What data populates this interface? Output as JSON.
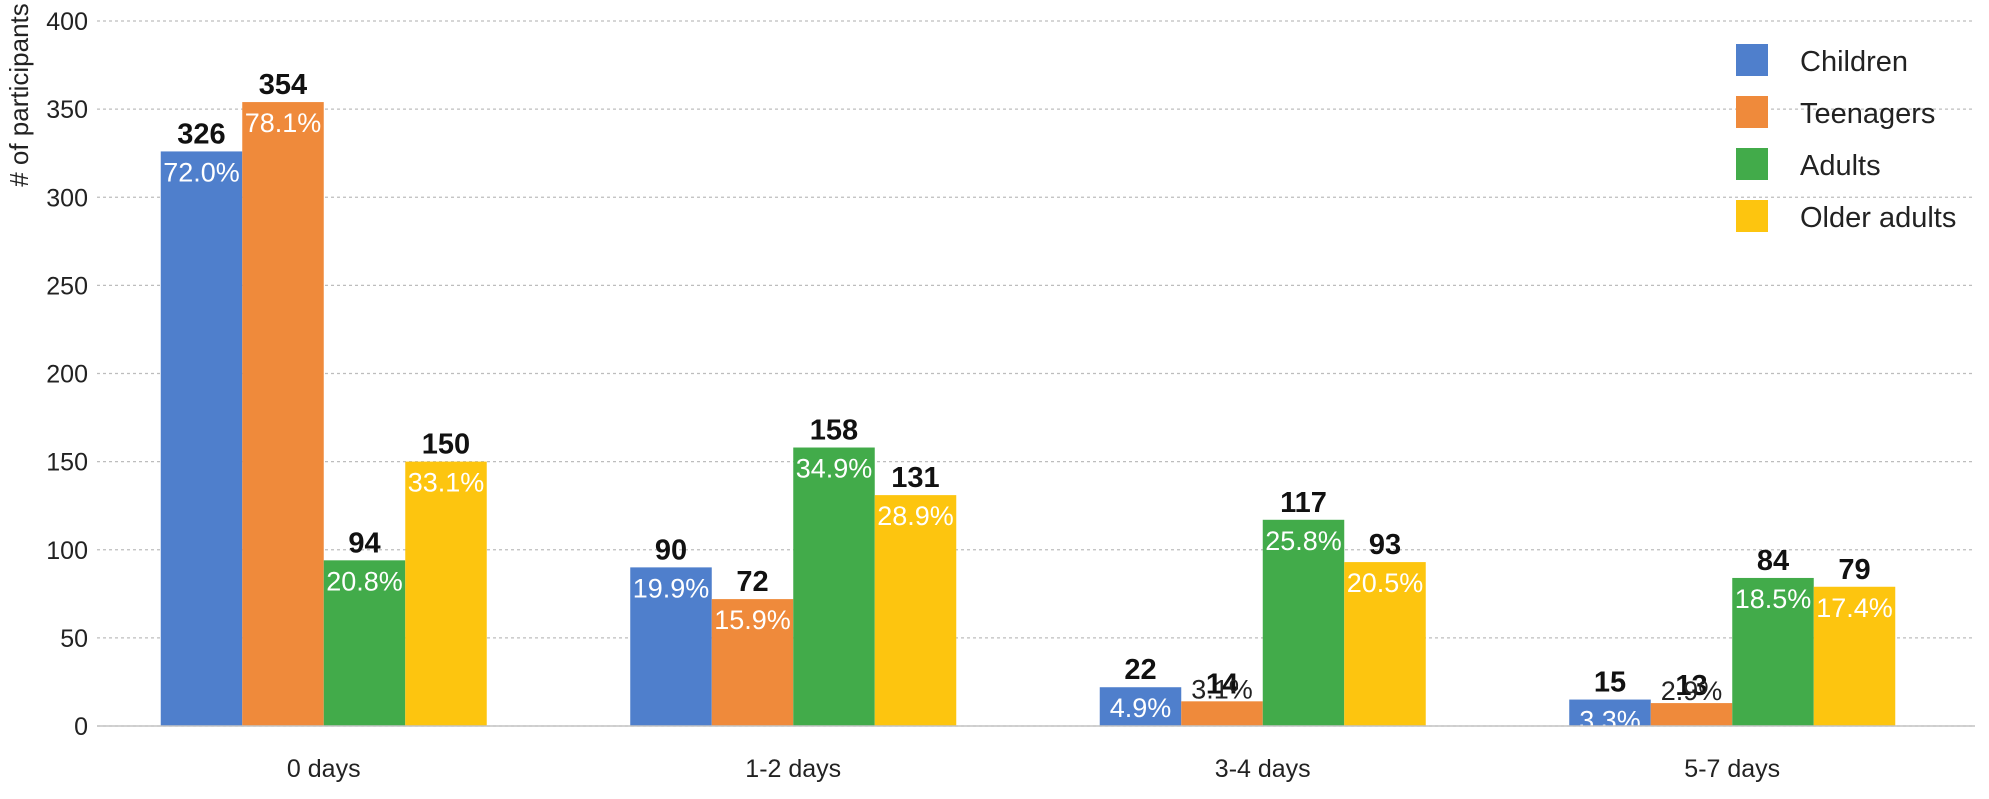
{
  "chart_data": {
    "type": "bar",
    "title": "",
    "xlabel": "",
    "ylabel": "# of participants",
    "ylim": [
      0,
      400
    ],
    "yticks": [
      0,
      50,
      100,
      150,
      200,
      250,
      300,
      350,
      400
    ],
    "grid": true,
    "legend_position": "top-right",
    "categories": [
      "0 days",
      "1-2 days",
      "3-4 days",
      "5-7 days"
    ],
    "series": [
      {
        "name": "Children",
        "color": "#4f7fcc",
        "values": [
          326,
          90,
          22,
          15
        ],
        "percent_labels": [
          "72.0%",
          "19.9%",
          "4.9%",
          "3.3%"
        ]
      },
      {
        "name": "Teenagers",
        "color": "#ef8a3b",
        "values": [
          354,
          72,
          14,
          13
        ],
        "percent_labels": [
          "78.1%",
          "15.9%",
          "3.1%",
          "2.9%"
        ]
      },
      {
        "name": "Adults",
        "color": "#42ab4a",
        "values": [
          94,
          158,
          117,
          84
        ],
        "percent_labels": [
          "20.8%",
          "34.9%",
          "25.8%",
          "18.5%"
        ]
      },
      {
        "name": "Older adults",
        "color": "#fdc50f",
        "values": [
          150,
          131,
          93,
          79
        ],
        "percent_labels": [
          "33.1%",
          "28.9%",
          "20.5%",
          "17.4%"
        ]
      }
    ]
  }
}
